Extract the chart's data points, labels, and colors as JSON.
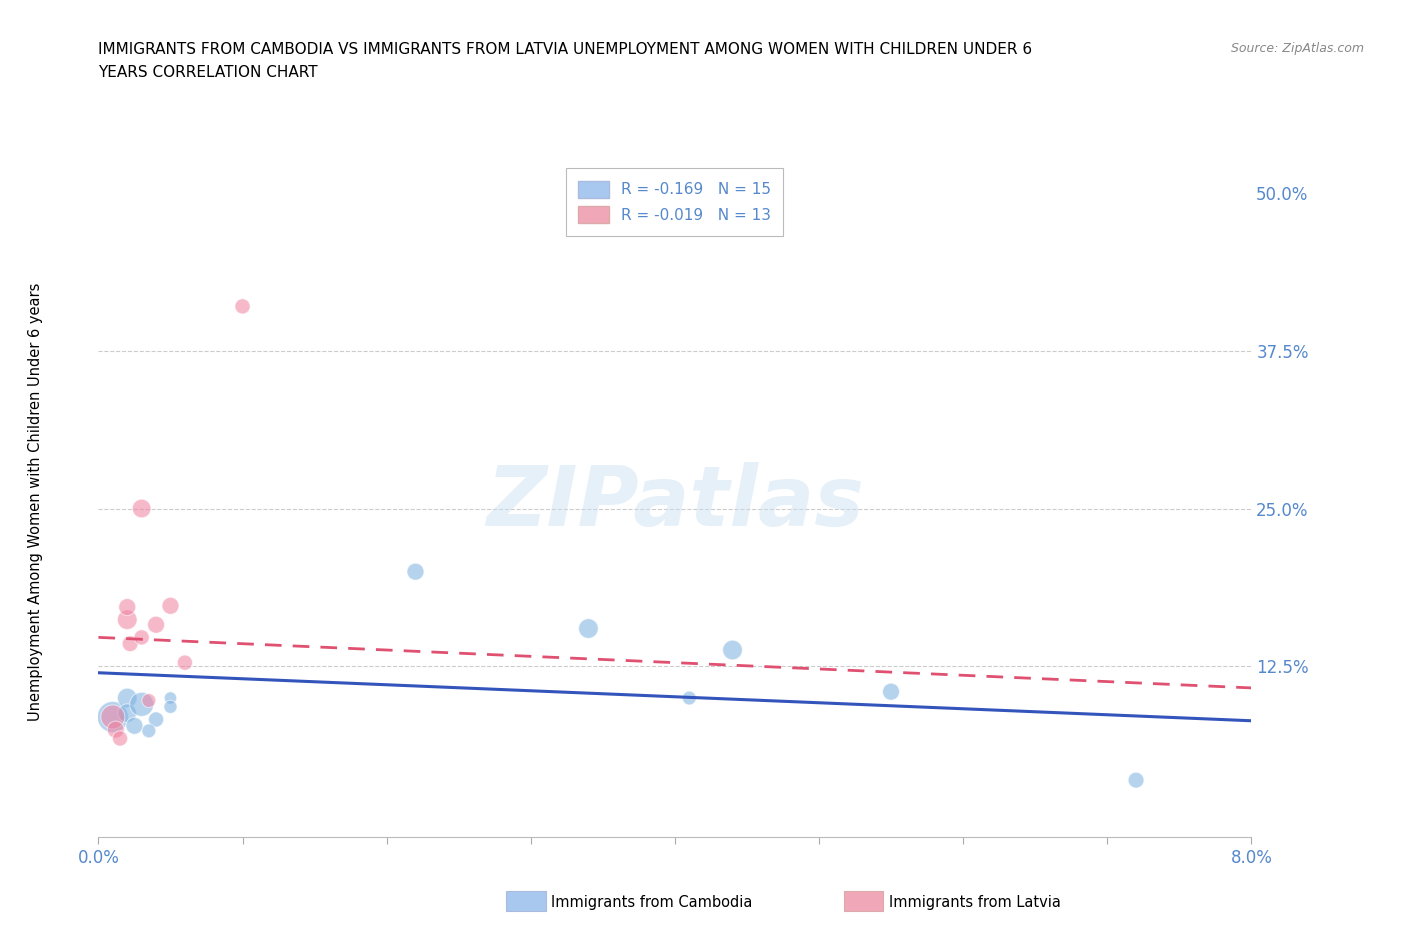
{
  "title_line1": "IMMIGRANTS FROM CAMBODIA VS IMMIGRANTS FROM LATVIA UNEMPLOYMENT AMONG WOMEN WITH CHILDREN UNDER 6",
  "title_line2": "YEARS CORRELATION CHART",
  "source": "Source: ZipAtlas.com",
  "ylabel": "Unemployment Among Women with Children Under 6 years",
  "xlim": [
    0.0,
    0.08
  ],
  "ylim": [
    -0.01,
    0.52
  ],
  "yticks": [
    0.0,
    0.125,
    0.25,
    0.375,
    0.5
  ],
  "ytick_labels": [
    "",
    "12.5%",
    "25.0%",
    "37.5%",
    "50.0%"
  ],
  "xticks": [
    0.0,
    0.01,
    0.02,
    0.03,
    0.04,
    0.05,
    0.06,
    0.07,
    0.08
  ],
  "xtick_show": [
    0.0,
    0.08
  ],
  "xtick_labels_show": [
    "0.0%",
    "8.0%"
  ],
  "watermark": "ZIPatlas",
  "legend_entries": [
    {
      "label": "R = -0.169   N = 15",
      "color": "#a8c8f0"
    },
    {
      "label": "R = -0.019   N = 13",
      "color": "#f0a8b8"
    }
  ],
  "legend_title_cambodia": "Immigrants from Cambodia",
  "legend_title_latvia": "Immigrants from Latvia",
  "cambodia_color": "#7ab0e0",
  "latvia_color": "#f080a0",
  "cambodia_line_color": "#3355bb",
  "latvia_line_color": "#e05070",
  "grid_color": "#cccccc",
  "tick_color": "#5588cc",
  "cambodia_scatter": {
    "x": [
      0.001,
      0.002,
      0.002,
      0.003,
      0.0025,
      0.004,
      0.0035,
      0.005,
      0.005,
      0.022,
      0.034,
      0.041,
      0.044,
      0.055,
      0.072
    ],
    "y": [
      0.085,
      0.1,
      0.088,
      0.095,
      0.078,
      0.083,
      0.074,
      0.1,
      0.093,
      0.2,
      0.155,
      0.1,
      0.138,
      0.105,
      0.035
    ],
    "sizes": [
      500,
      200,
      180,
      300,
      150,
      120,
      100,
      80,
      90,
      150,
      200,
      100,
      200,
      150,
      130
    ]
  },
  "latvia_scatter": {
    "x": [
      0.001,
      0.0012,
      0.0015,
      0.002,
      0.002,
      0.0022,
      0.003,
      0.003,
      0.0035,
      0.004,
      0.005,
      0.006,
      0.01
    ],
    "y": [
      0.085,
      0.075,
      0.068,
      0.162,
      0.172,
      0.143,
      0.25,
      0.148,
      0.098,
      0.158,
      0.173,
      0.128,
      0.41
    ],
    "sizes": [
      300,
      150,
      120,
      200,
      150,
      130,
      180,
      120,
      100,
      150,
      150,
      120,
      120
    ]
  },
  "cambodia_trendline": {
    "x": [
      0.0,
      0.08
    ],
    "y": [
      0.12,
      0.082
    ]
  },
  "latvia_trendline": {
    "x": [
      0.0,
      0.08
    ],
    "y": [
      0.148,
      0.108
    ]
  }
}
